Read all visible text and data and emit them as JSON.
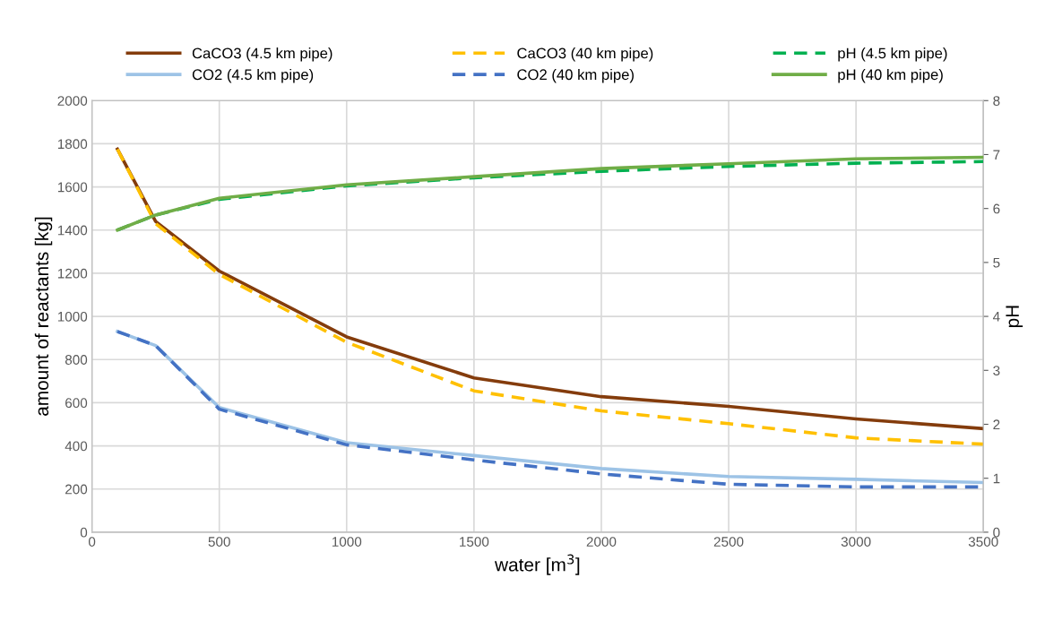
{
  "chart_data": {
    "type": "line",
    "xlabel": "water [m$^{3}$]",
    "ylabel": "amount of reactants [kg]",
    "y2label": "pH",
    "x": [
      100,
      250,
      500,
      1000,
      1500,
      2000,
      2500,
      3000,
      3500
    ],
    "series": [
      {
        "name": "CaCO3 (4.5 km pipe)",
        "color": "#843c0c",
        "line_style": "solid",
        "values": [
          1775,
          1440,
          1210,
          905,
          715,
          628,
          583,
          525,
          480
        ]
      },
      {
        "name": "CO2 (4.5 km pipe)",
        "color": "#9dc3e6",
        "line_style": "solid",
        "values": [
          930,
          865,
          578,
          415,
          355,
          295,
          258,
          245,
          230
        ]
      },
      {
        "name": "CaCO3 (40 km pipe)",
        "color": "#ffc000",
        "line_style": "dashed",
        "values": [
          1775,
          1430,
          1195,
          880,
          655,
          562,
          503,
          437,
          408
        ]
      },
      {
        "name": "CO2 (40 km pipe)",
        "color": "#4472c4",
        "line_style": "dashed",
        "values": [
          930,
          865,
          570,
          405,
          335,
          270,
          222,
          210,
          210
        ]
      },
      {
        "name": "pH (4.5 km pipe)",
        "color": "#00b050",
        "line_style": "dashed",
        "axis": "y2",
        "values": [
          5.6,
          5.88,
          6.17,
          6.42,
          6.57,
          6.69,
          6.78,
          6.84,
          6.87
        ]
      },
      {
        "name": "pH (40 km pipe)",
        "color": "#70ad47",
        "line_style": "solid",
        "axis": "y2",
        "values": [
          5.6,
          5.88,
          6.19,
          6.44,
          6.59,
          6.74,
          6.83,
          6.92,
          6.95
        ]
      }
    ],
    "xlim": [
      0,
      3500
    ],
    "xticks": [
      0,
      500,
      1000,
      1500,
      2000,
      2500,
      3000,
      3500
    ],
    "ylim": [
      0,
      2000
    ],
    "yticks": [
      0,
      200,
      400,
      600,
      800,
      1000,
      1200,
      1400,
      1600,
      1800,
      2000
    ],
    "y2lim": [
      0,
      8
    ],
    "y2ticks": [
      0,
      1,
      2,
      3,
      4,
      5,
      6,
      7,
      8
    ],
    "grid": true,
    "legend": "top",
    "marker": "none"
  }
}
